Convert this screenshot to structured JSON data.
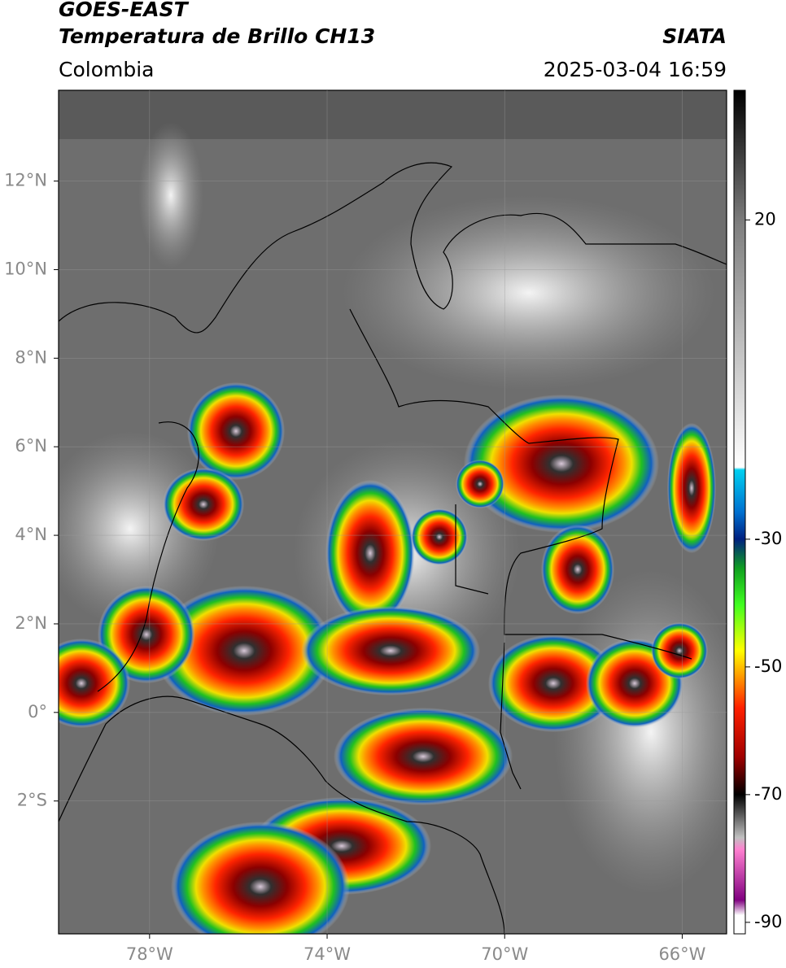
{
  "header": {
    "title": "GOES-EAST",
    "subtitle": "Temperatura de Brillo CH13",
    "region": "Colombia",
    "source": "SIATA",
    "datetime": "2025-03-04 16:59"
  },
  "map": {
    "xlim": [
      -80.05,
      -65
    ],
    "ylim": [
      -5,
      14.05
    ],
    "xticks": [
      {
        "value": -78,
        "label": "78°W"
      },
      {
        "value": -74,
        "label": "74°W"
      },
      {
        "value": -70,
        "label": "70°W"
      },
      {
        "value": -66,
        "label": "66°W"
      }
    ],
    "yticks": [
      {
        "value": 12,
        "label": "12°N"
      },
      {
        "value": 10,
        "label": "10°N"
      },
      {
        "value": 8,
        "label": "8°N"
      },
      {
        "value": 6,
        "label": "6°N"
      },
      {
        "value": 4,
        "label": "4°N"
      },
      {
        "value": 2,
        "label": "2°N"
      },
      {
        "value": 0,
        "label": "0°"
      },
      {
        "value": -2,
        "label": "2°S"
      }
    ],
    "grid": true
  },
  "colorbar": {
    "lim": [
      -91.8,
      40.3
    ],
    "ticks": [
      20,
      -30,
      -50,
      -70,
      -90
    ]
  }
}
